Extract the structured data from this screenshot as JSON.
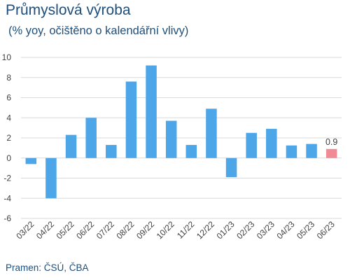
{
  "chart_data": {
    "type": "bar",
    "title": "Průmyslová výroba",
    "subtitle": "(% yoy, očištěno o kalendářní vlivy)",
    "categories": [
      "03/22",
      "04/22",
      "05/22",
      "06/22",
      "07/22",
      "08/22",
      "09/22",
      "10/22",
      "11/22",
      "12/22",
      "01/23",
      "02/23",
      "03/23",
      "04/23",
      "05/23",
      "06/23"
    ],
    "values": [
      -0.6,
      -4.0,
      2.3,
      4.0,
      1.3,
      7.6,
      9.2,
      3.7,
      1.3,
      4.9,
      -1.9,
      2.5,
      2.9,
      1.25,
      1.4,
      0.9
    ],
    "ylim": [
      -6,
      10
    ],
    "yticks": [
      -6,
      -4,
      -2,
      0,
      2,
      4,
      6,
      8,
      10
    ],
    "grid": true,
    "bar_color": "#4da6e8",
    "highlight_color": "#f08a94",
    "highlight_index": 15,
    "data_labels": [
      {
        "index": 15,
        "text": "0.9"
      }
    ],
    "source": "Pramen: ČSÚ, ČBA"
  }
}
